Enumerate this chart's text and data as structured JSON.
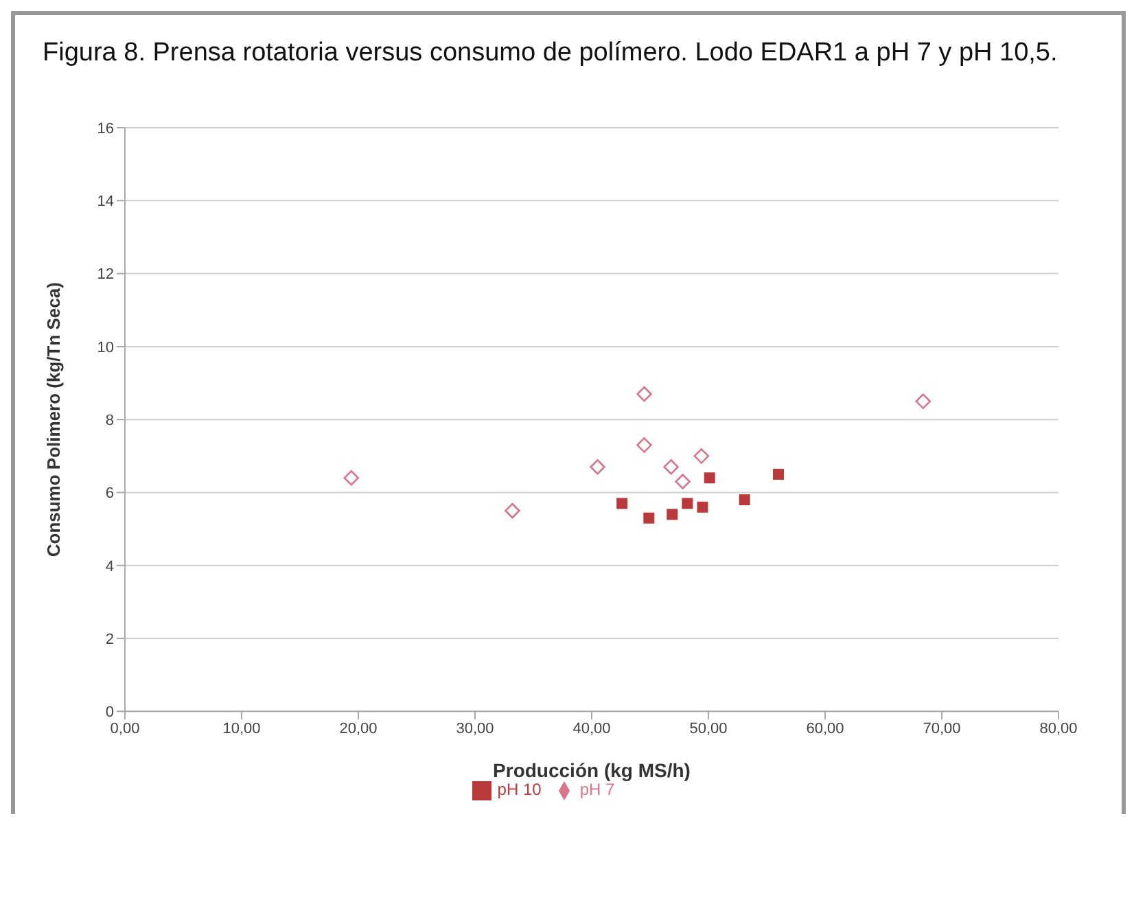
{
  "chart_data": {
    "type": "scatter",
    "title": "Figura 8. Prensa rotatoria versus consumo de polímero. Lodo EDAR1 a pH 7 y pH 10,5.",
    "xlabel": "Producción (kg MS/h)",
    "ylabel": "Consumo Polimero (kg/Tn Seca)",
    "xlim": [
      0,
      80
    ],
    "xticks": [
      {
        "value": 0,
        "label": "0,00"
      },
      {
        "value": 10,
        "label": "10,00"
      },
      {
        "value": 20,
        "label": "20,00"
      },
      {
        "value": 30,
        "label": "30,00"
      },
      {
        "value": 40,
        "label": "40,00"
      },
      {
        "value": 50,
        "label": "50,00"
      },
      {
        "value": 60,
        "label": "60,00"
      },
      {
        "value": 70,
        "label": "70,00"
      },
      {
        "value": 80,
        "label": "80,00"
      }
    ],
    "ylim": [
      0,
      16
    ],
    "yticks": [
      0,
      2,
      4,
      6,
      8,
      10,
      12,
      14,
      16
    ],
    "grid": "y",
    "legend": "bottom",
    "series": [
      {
        "name": "pH 7",
        "color": "#d9778a",
        "marker": "diamond",
        "x": [
          19.4,
          33.2,
          40.5,
          44.5,
          44.5,
          46.8,
          47.8,
          49.4,
          68.4
        ],
        "values": [
          6.4,
          5.5,
          6.7,
          8.7,
          7.3,
          6.7,
          6.3,
          7.0,
          8.5
        ]
      },
      {
        "name": "pH 10",
        "color": "#b83a3a",
        "marker": "square",
        "x": [
          42.6,
          44.9,
          46.9,
          48.2,
          49.5,
          50.1,
          53.1,
          56.0
        ],
        "values": [
          5.7,
          5.3,
          5.4,
          5.7,
          5.6,
          6.4,
          5.8,
          6.5
        ]
      }
    ]
  }
}
